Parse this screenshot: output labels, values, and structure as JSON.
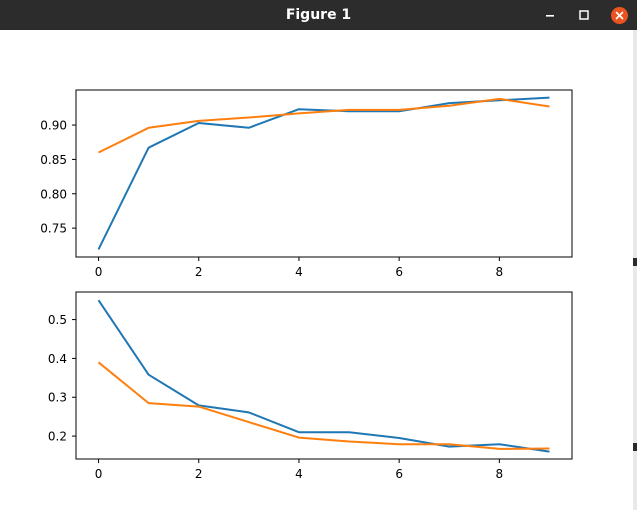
{
  "window": {
    "title": "Figure 1",
    "buttons": {
      "minimize_icon": "minimize-icon",
      "maximize_icon": "maximize-icon",
      "close_icon": "close-icon"
    },
    "close_color": "#e95420"
  },
  "chart_data": [
    {
      "type": "line",
      "x": [
        0,
        1,
        2,
        3,
        4,
        5,
        6,
        7,
        8,
        9
      ],
      "series": [
        {
          "color": "#1f77b4",
          "values": [
            0.719,
            0.867,
            0.903,
            0.896,
            0.923,
            0.92,
            0.92,
            0.932,
            0.936,
            0.94
          ]
        },
        {
          "color": "#ff7f0e",
          "values": [
            0.86,
            0.896,
            0.906,
            0.911,
            0.917,
            0.922,
            0.922,
            0.928,
            0.938,
            0.927
          ]
        }
      ],
      "xticks": [
        0,
        2,
        4,
        6,
        8
      ],
      "yticks": [
        0.75,
        0.8,
        0.85,
        0.9
      ],
      "ytick_labels": [
        "0.75",
        "0.80",
        "0.85",
        "0.90"
      ],
      "xlim": [
        -0.45,
        9.45
      ],
      "ylim": [
        0.708,
        0.951
      ],
      "grid": false
    },
    {
      "type": "line",
      "x": [
        0,
        1,
        2,
        3,
        4,
        5,
        6,
        7,
        8,
        9
      ],
      "series": [
        {
          "color": "#1f77b4",
          "values": [
            0.55,
            0.358,
            0.279,
            0.261,
            0.21,
            0.21,
            0.195,
            0.173,
            0.179,
            0.16
          ]
        },
        {
          "color": "#ff7f0e",
          "values": [
            0.39,
            0.285,
            0.276,
            0.236,
            0.196,
            0.186,
            0.179,
            0.179,
            0.167,
            0.168
          ]
        }
      ],
      "xticks": [
        0,
        2,
        4,
        6,
        8
      ],
      "yticks": [
        0.2,
        0.3,
        0.4,
        0.5
      ],
      "ytick_labels": [
        "0.2",
        "0.3",
        "0.4",
        "0.5"
      ],
      "xlim": [
        -0.45,
        9.45
      ],
      "ylim": [
        0.141,
        0.571
      ],
      "grid": false
    }
  ]
}
